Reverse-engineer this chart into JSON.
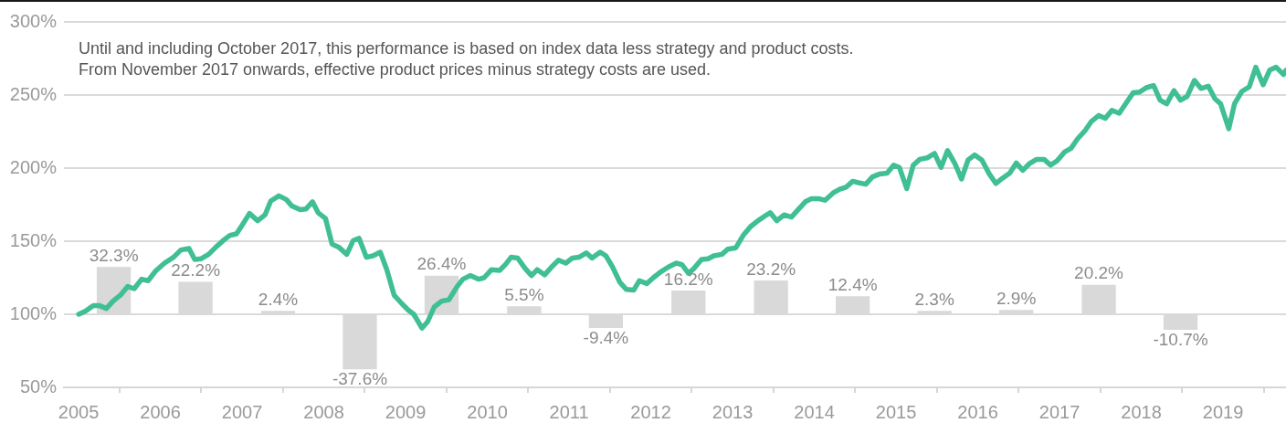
{
  "chart_data": {
    "type": "line",
    "annotations": [
      "Until and including October 2017, this performance is based on index data less strategy and product costs.",
      "From November 2017 onwards, effective product prices minus strategy costs are used."
    ],
    "xlim": [
      2004.82,
      2019.77
    ],
    "xticks": [
      2005,
      2006,
      2007,
      2008,
      2009,
      2010,
      2011,
      2012,
      2013,
      2014,
      2015,
      2016,
      2017,
      2018,
      2019
    ],
    "ylim": [
      50,
      300
    ],
    "yticks": [
      {
        "value": 50,
        "label": "50%"
      },
      {
        "value": 100,
        "label": "100%"
      },
      {
        "value": 150,
        "label": "150%"
      },
      {
        "value": 200,
        "label": "200%"
      },
      {
        "value": 250,
        "label": "250%"
      },
      {
        "value": 300,
        "label": "300%"
      }
    ],
    "grid": "y",
    "series": [
      {
        "color": "#40bf94",
        "x": [
          2005.0,
          2005.08,
          2005.18,
          2005.25,
          2005.34,
          2005.42,
          2005.51,
          2005.6,
          2005.68,
          2005.77,
          2005.85,
          2005.94,
          2006.05,
          2006.16,
          2006.25,
          2006.35,
          2006.42,
          2006.5,
          2006.59,
          2006.68,
          2006.78,
          2006.85,
          2006.93,
          2007.0,
          2007.09,
          2007.19,
          2007.28,
          2007.35,
          2007.45,
          2007.54,
          2007.61,
          2007.71,
          2007.78,
          2007.86,
          2007.93,
          2008.02,
          2008.1,
          2008.18,
          2008.28,
          2008.36,
          2008.43,
          2008.52,
          2008.6,
          2008.69,
          2008.77,
          2008.86,
          2008.95,
          2009.03,
          2009.1,
          2009.2,
          2009.27,
          2009.35,
          2009.44,
          2009.53,
          2009.63,
          2009.7,
          2009.79,
          2009.89,
          2009.96,
          2010.05,
          2010.15,
          2010.22,
          2010.29,
          2010.37,
          2010.46,
          2010.54,
          2010.61,
          2010.7,
          2010.78,
          2010.87,
          2010.96,
          2011.04,
          2011.12,
          2011.21,
          2011.28,
          2011.38,
          2011.45,
          2011.53,
          2011.62,
          2011.7,
          2011.79,
          2011.86,
          2011.95,
          2012.03,
          2012.12,
          2012.22,
          2012.31,
          2012.38,
          2012.46,
          2012.53,
          2012.62,
          2012.7,
          2012.77,
          2012.87,
          2012.94,
          2013.04,
          2013.13,
          2013.22,
          2013.31,
          2013.39,
          2013.46,
          2013.54,
          2013.63,
          2013.72,
          2013.8,
          2013.89,
          2013.96,
          2014.06,
          2014.13,
          2014.23,
          2014.31,
          2014.39,
          2014.47,
          2014.54,
          2014.63,
          2014.71,
          2014.8,
          2014.89,
          2014.97,
          2015.04,
          2015.13,
          2015.21,
          2015.29,
          2015.38,
          2015.47,
          2015.55,
          2015.63,
          2015.72,
          2015.8,
          2015.88,
          2015.96,
          2016.05,
          2016.14,
          2016.22,
          2016.3,
          2016.39,
          2016.47,
          2016.55,
          2016.63,
          2016.72,
          2016.81,
          2016.89,
          2016.97,
          2017.06,
          2017.14,
          2017.22,
          2017.31,
          2017.39,
          2017.48,
          2017.56,
          2017.64,
          2017.73,
          2017.82,
          2017.9,
          2017.98,
          2018.06,
          2018.15,
          2018.23,
          2018.31,
          2018.4,
          2018.48,
          2018.56,
          2018.65,
          2018.73,
          2018.82,
          2018.9,
          2018.97,
          2019.07,
          2019.14,
          2019.23,
          2019.32,
          2019.4,
          2019.49,
          2019.57,
          2019.65,
          2019.74,
          2019.77
        ],
        "values": [
          100,
          102,
          106,
          106,
          104,
          109,
          113,
          119,
          117.5,
          124,
          123,
          129.5,
          135,
          139,
          144,
          145,
          137.5,
          138,
          141,
          146,
          151,
          154,
          155,
          161,
          169,
          164,
          168,
          177.5,
          181,
          178.5,
          174,
          171.5,
          172,
          177,
          169.5,
          165.5,
          148,
          146,
          141,
          150.5,
          152,
          139,
          140,
          142.5,
          130.5,
          113,
          107.5,
          103,
          100,
          90.5,
          95,
          105,
          109,
          110,
          119,
          124,
          126.5,
          124,
          125,
          130.5,
          130,
          134,
          139,
          138.5,
          131.5,
          126.5,
          130.5,
          127,
          132,
          137,
          135,
          138.5,
          139,
          142,
          138.5,
          142.5,
          140,
          132.5,
          122,
          117,
          116.5,
          123,
          121,
          125,
          129,
          132.5,
          135,
          134,
          128,
          131.5,
          137.5,
          138,
          140,
          141,
          144.5,
          145.5,
          154,
          160,
          164,
          167,
          169.5,
          164,
          168,
          166.5,
          171.5,
          177,
          179,
          179,
          178,
          183,
          185.5,
          187,
          191,
          190,
          189,
          194,
          196,
          196.5,
          202,
          200.5,
          186,
          202,
          206,
          207,
          210,
          200.5,
          212,
          203,
          192.5,
          205.5,
          209,
          205.5,
          196,
          189.5,
          193,
          196.5,
          203.5,
          198.5,
          203,
          206,
          206,
          202,
          205,
          211,
          213.5,
          220,
          225.5,
          232,
          236,
          234,
          239.5,
          237.5,
          245,
          251.5,
          252,
          255,
          256.5,
          246.5,
          244,
          253,
          246.5,
          249,
          260,
          254.5,
          256,
          247.5,
          244,
          227,
          244,
          252.5,
          255.5,
          269,
          257,
          267,
          269,
          264,
          267
        ]
      },
      {
        "type": "bar",
        "color": "#d9d9d9",
        "x": [
          2005.43,
          2006.43,
          2007.44,
          2008.44,
          2009.44,
          2010.45,
          2011.45,
          2012.46,
          2013.47,
          2014.47,
          2015.47,
          2016.47,
          2017.48,
          2018.48
        ],
        "base": [
          100,
          100,
          100,
          100,
          100,
          100,
          100,
          100,
          100,
          100,
          100,
          100,
          100,
          100
        ],
        "values": [
          32.3,
          22.2,
          2.4,
          -37.6,
          26.4,
          5.5,
          -9.4,
          16.2,
          23.2,
          12.4,
          2.3,
          2.9,
          20.2,
          -10.7
        ],
        "value_labels": [
          "32.3%",
          "22.2%",
          "2.4%",
          "-37.6%",
          "26.4%",
          "5.5%",
          "-9.4%",
          "16.2%",
          "23.2%",
          "12.4%",
          "2.3%",
          "2.9%",
          "20.2%",
          "-10.7%"
        ]
      }
    ]
  }
}
